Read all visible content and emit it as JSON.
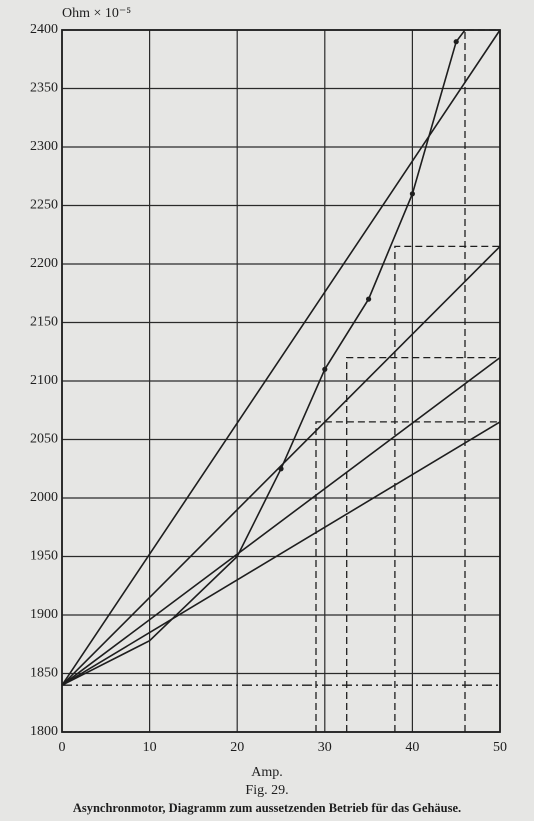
{
  "chart_data": {
    "type": "line",
    "y_label": "Ohm × 10⁻⁵",
    "x_label": "Amp.",
    "caption_number": "Fig. 29.",
    "caption": "Asynchronmotor, Diagramm zum aussetzenden Betrieb für das Gehäuse.",
    "xlim": [
      0,
      50
    ],
    "ylim": [
      1800,
      2400
    ],
    "xticks": [
      0,
      10,
      20,
      30,
      40,
      50
    ],
    "yticks": [
      1800,
      1850,
      1900,
      1950,
      2000,
      2050,
      2100,
      2150,
      2200,
      2250,
      2300,
      2350,
      2400
    ],
    "grid": true,
    "series": [
      {
        "type": "line",
        "color": "#1e1e1e",
        "x": [
          0,
          10,
          20,
          25,
          30,
          35,
          40,
          45,
          46
        ],
        "values": [
          1840,
          1878,
          1950,
          2025,
          2110,
          2170,
          2260,
          2390,
          2400
        ]
      },
      {
        "type": "scatter",
        "color": "#1e1e1e",
        "x": [
          25,
          30,
          35,
          40,
          45
        ],
        "values": [
          2025,
          2110,
          2170,
          2260,
          2390
        ]
      },
      {
        "type": "line",
        "color": "#1e1e1e",
        "x": [
          0,
          50
        ],
        "values": [
          1840,
          2400
        ]
      },
      {
        "type": "line",
        "color": "#1e1e1e",
        "x": [
          0,
          50
        ],
        "values": [
          1840,
          2215
        ]
      },
      {
        "type": "line",
        "color": "#1e1e1e",
        "x": [
          0,
          50
        ],
        "values": [
          1840,
          2120
        ]
      },
      {
        "type": "line",
        "color": "#1e1e1e",
        "x": [
          0,
          50
        ],
        "values": [
          1840,
          2065
        ]
      },
      {
        "type": "line",
        "color": "#1e1e1e",
        "dash": "dashdot",
        "x": [
          0,
          50
        ],
        "values": [
          1840,
          1840
        ]
      },
      {
        "type": "line",
        "color": "#1e1e1e",
        "dash": "dashed",
        "x": [
          29,
          29,
          50
        ],
        "values": [
          1800,
          2065,
          2065
        ]
      },
      {
        "type": "line",
        "color": "#1e1e1e",
        "dash": "dashed",
        "x": [
          32.5,
          32.5,
          50
        ],
        "values": [
          1800,
          2120,
          2120
        ]
      },
      {
        "type": "line",
        "color": "#1e1e1e",
        "dash": "dashed",
        "x": [
          38,
          38,
          50
        ],
        "values": [
          1800,
          2215,
          2215
        ]
      },
      {
        "type": "line",
        "color": "#1e1e1e",
        "dash": "dashed",
        "x": [
          46,
          46,
          50
        ],
        "values": [
          1800,
          2400,
          2400
        ]
      }
    ]
  }
}
